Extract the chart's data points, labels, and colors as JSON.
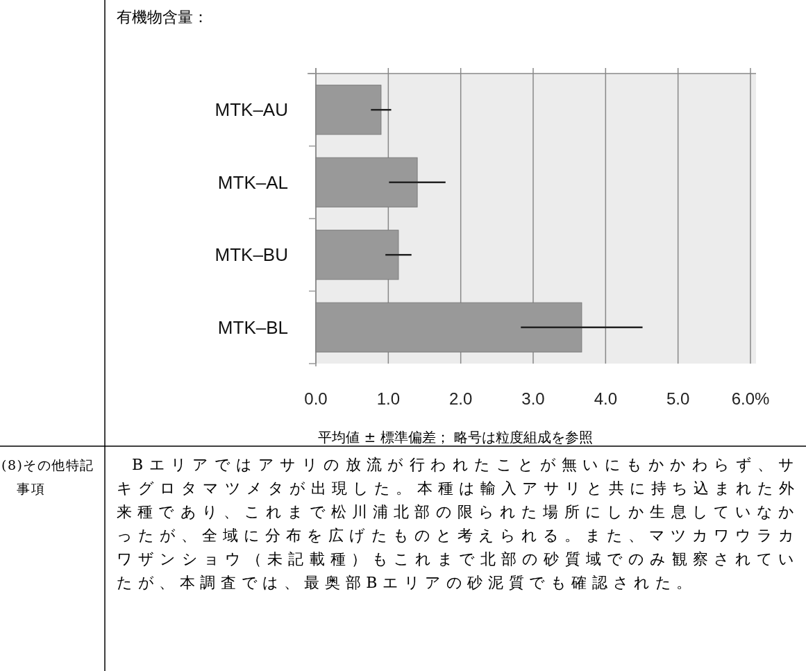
{
  "chart_data": {
    "type": "bar",
    "orientation": "horizontal",
    "title": "有機物含量：",
    "categories": [
      "MTK–AU",
      "MTK–AL",
      "MTK–BU",
      "MTK–BL"
    ],
    "values": [
      0.9,
      1.4,
      1.14,
      3.67
    ],
    "errors": [
      0.14,
      0.39,
      0.18,
      0.84
    ],
    "color": "#999999",
    "xlim": [
      0,
      6
    ],
    "xticks": [
      {
        "value": 0,
        "label": "0.0"
      },
      {
        "value": 1,
        "label": "1.0"
      },
      {
        "value": 2,
        "label": "2.0"
      },
      {
        "value": 3,
        "label": "3.0"
      },
      {
        "value": 4,
        "label": "4.0"
      },
      {
        "value": 5,
        "label": "5.0"
      },
      {
        "value": 6,
        "label": "6.0%"
      }
    ],
    "grid": "x",
    "annotations": [
      "平均値 ± 標準偏差； 略号は粒度組成を参照",
      "(8)その他特記事項",
      "Bエリアではアサリの放流が行われたことが無いにもかかわらず、サキグロタマツメタが出現した。本種は輸入アサリと共に持ち込まれた外来種であり、これまで松川浦北部の限られた場所にしか生息していなかったが、全域に分布を広げたものと考えられる。また、マツカワウラカワザンショウ（未記載種）もこれまで北部の砂質域でのみ観察されていたが、本調査では、最奥部Bエリアの砂泥質でも確認された。"
    ]
  }
}
